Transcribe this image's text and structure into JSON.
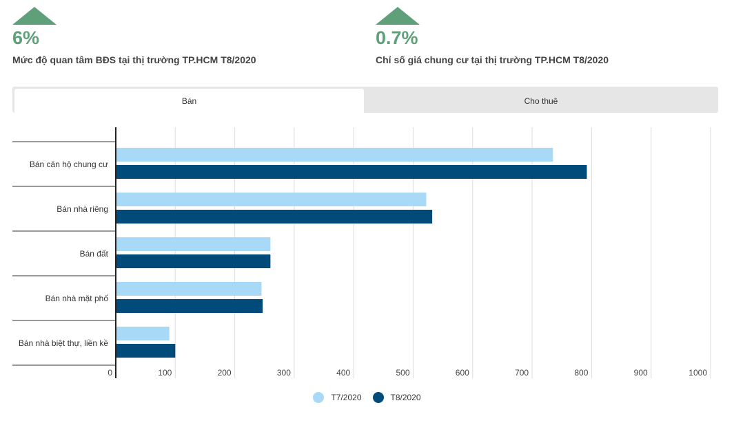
{
  "stats": [
    {
      "value": "6%",
      "label": "Mức độ quan tâm BĐS tại thị trường TP.HCM T8/2020"
    },
    {
      "value": "0.7%",
      "label": "Chỉ số giá chung cư tại thị trường TP.HCM T8/2020"
    }
  ],
  "tabs": {
    "sell": "Bán",
    "rent": "Cho thuê",
    "active": "sell"
  },
  "colors": {
    "up": "#5fa07a",
    "t7": "#a8daf8",
    "t8": "#004b7a"
  },
  "chart_data": {
    "type": "bar",
    "orientation": "horizontal",
    "categories": [
      "Bán căn hộ chung cư",
      "Bán nhà riêng",
      "Bán đất",
      "Bán nhà mặt phố",
      "Bán nhà biệt thự, liền kề"
    ],
    "series": [
      {
        "name": "T7/2020",
        "values": [
          735,
          522,
          260,
          245,
          90
        ]
      },
      {
        "name": "T8/2020",
        "values": [
          792,
          532,
          260,
          247,
          100
        ]
      }
    ],
    "xlim": [
      0,
      1000
    ],
    "xticks": [
      0,
      100,
      200,
      300,
      400,
      500,
      600,
      700,
      800,
      900,
      1000
    ],
    "grid": true,
    "legend_position": "bottom"
  }
}
